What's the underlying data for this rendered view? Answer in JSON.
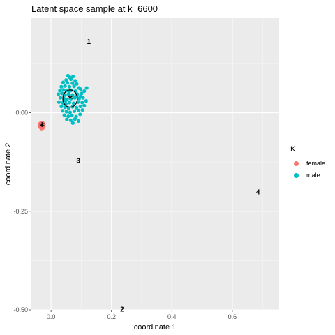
{
  "chart_data": {
    "type": "scatter",
    "title": "Latent space sample at k=6600",
    "xlabel": "coordinate 1",
    "ylabel": "coordinate 2",
    "xlim": [
      -0.065,
      0.755
    ],
    "ylim": [
      -0.5,
      0.24
    ],
    "x_ticks": [
      0.0,
      0.2,
      0.4,
      0.6
    ],
    "x_tick_labels": [
      "0.0",
      "0.2",
      "0.4",
      "0.6"
    ],
    "y_ticks": [
      -0.5,
      -0.25,
      0.0
    ],
    "y_tick_labels": [
      "-0.50",
      "-0.25",
      "0.00"
    ],
    "grid": true,
    "legend": {
      "title": "K",
      "position": "right",
      "entries": [
        {
          "name": "female",
          "color": "#F8766D"
        },
        {
          "name": "male",
          "color": "#00BFC4"
        }
      ]
    },
    "series": [
      {
        "name": "female",
        "color": "#F8766D",
        "points": [
          [
            -0.038,
            -0.032
          ],
          [
            -0.036,
            -0.027
          ],
          [
            -0.031,
            -0.025
          ],
          [
            -0.027,
            -0.026
          ],
          [
            -0.024,
            -0.03
          ],
          [
            -0.024,
            -0.035
          ],
          [
            -0.027,
            -0.039
          ],
          [
            -0.032,
            -0.04
          ],
          [
            -0.036,
            -0.037
          ],
          [
            -0.033,
            -0.03
          ],
          [
            -0.028,
            -0.031
          ],
          [
            -0.03,
            -0.035
          ],
          [
            -0.033,
            -0.033
          ]
        ]
      },
      {
        "name": "male",
        "color": "#00BFC4",
        "points": [
          [
            0.056,
            0.094
          ],
          [
            0.062,
            0.09
          ],
          [
            0.073,
            0.092
          ],
          [
            0.05,
            0.083
          ],
          [
            0.066,
            0.085
          ],
          [
            0.08,
            0.081
          ],
          [
            0.04,
            0.077
          ],
          [
            0.054,
            0.076
          ],
          [
            0.071,
            0.075
          ],
          [
            0.085,
            0.073
          ],
          [
            0.034,
            0.066
          ],
          [
            0.046,
            0.068
          ],
          [
            0.061,
            0.066
          ],
          [
            0.076,
            0.067
          ],
          [
            0.092,
            0.063
          ],
          [
            0.029,
            0.056
          ],
          [
            0.041,
            0.058
          ],
          [
            0.051,
            0.056
          ],
          [
            0.066,
            0.057
          ],
          [
            0.081,
            0.055
          ],
          [
            0.098,
            0.06
          ],
          [
            0.118,
            0.063
          ],
          [
            0.024,
            0.047
          ],
          [
            0.036,
            0.049
          ],
          [
            0.046,
            0.045
          ],
          [
            0.058,
            0.047
          ],
          [
            0.071,
            0.045
          ],
          [
            0.087,
            0.047
          ],
          [
            0.101,
            0.049
          ],
          [
            0.11,
            0.055
          ],
          [
            0.031,
            0.038
          ],
          [
            0.043,
            0.036
          ],
          [
            0.053,
            0.034
          ],
          [
            0.066,
            0.036
          ],
          [
            0.079,
            0.038
          ],
          [
            0.093,
            0.036
          ],
          [
            0.106,
            0.038
          ],
          [
            0.026,
            0.027
          ],
          [
            0.039,
            0.025
          ],
          [
            0.049,
            0.023
          ],
          [
            0.061,
            0.026
          ],
          [
            0.075,
            0.024
          ],
          [
            0.089,
            0.027
          ],
          [
            0.103,
            0.026
          ],
          [
            0.116,
            0.03
          ],
          [
            0.034,
            0.016
          ],
          [
            0.046,
            0.014
          ],
          [
            0.058,
            0.012
          ],
          [
            0.071,
            0.015
          ],
          [
            0.084,
            0.013
          ],
          [
            0.097,
            0.016
          ],
          [
            0.11,
            0.018
          ],
          [
            0.038,
            0.005
          ],
          [
            0.051,
            0.003
          ],
          [
            0.063,
            0.001
          ],
          [
            0.077,
            0.004
          ],
          [
            0.091,
            0.006
          ],
          [
            0.104,
            0.007
          ],
          [
            0.044,
            -0.006
          ],
          [
            0.057,
            -0.009
          ],
          [
            0.069,
            -0.007
          ],
          [
            0.083,
            -0.01
          ],
          [
            0.096,
            -0.004
          ],
          [
            0.052,
            -0.017
          ],
          [
            0.065,
            -0.019
          ],
          [
            0.079,
            -0.016
          ],
          [
            0.091,
            -0.021
          ],
          [
            0.072,
            -0.026
          ],
          [
            0.06,
            0.054
          ],
          [
            0.084,
            0.041
          ],
          [
            0.048,
            0.031
          ],
          [
            0.097,
            0.041
          ]
        ]
      }
    ],
    "centroids": [
      {
        "group": "female",
        "x": -0.03,
        "y": -0.033,
        "marker": "*"
      },
      {
        "group": "male",
        "x": 0.063,
        "y": 0.036,
        "marker": "*"
      }
    ],
    "ellipses": [
      {
        "group": "male",
        "cx": 0.063,
        "cy": 0.036,
        "rx": 0.024,
        "ry": 0.022
      }
    ],
    "annotations": [
      {
        "text": "1",
        "x": 0.125,
        "y": 0.182
      },
      {
        "text": "2",
        "x": 0.235,
        "y": -0.497
      },
      {
        "text": "3",
        "x": 0.09,
        "y": -0.12
      },
      {
        "text": "4",
        "x": 0.685,
        "y": -0.2
      }
    ]
  }
}
